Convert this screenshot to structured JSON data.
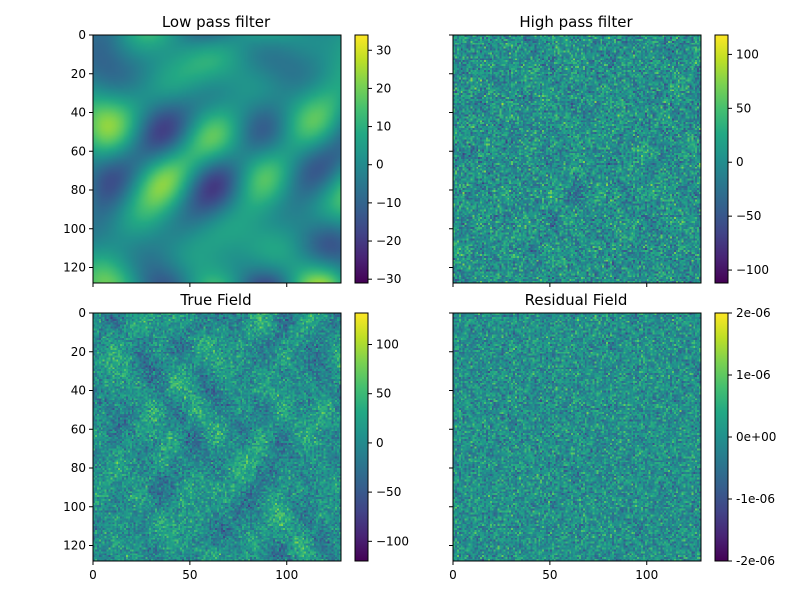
{
  "chart_data": [
    {
      "type": "heatmap",
      "title": "Low pass filter",
      "colormap": "viridis",
      "xlim": [
        0,
        128
      ],
      "ylim": [
        0,
        128
      ],
      "xticks": [
        0,
        50,
        100
      ],
      "xtick_labels_visible": false,
      "yticks": [
        0,
        20,
        40,
        60,
        80,
        100,
        120
      ],
      "ytick_labels_visible": true,
      "colorbar": {
        "vmin": -31,
        "vmax": 34,
        "ticks": [
          30,
          20,
          10,
          0,
          -10,
          -20,
          -30
        ],
        "labels": [
          "30",
          "20",
          "10",
          "0",
          "−10",
          "−20",
          "−30"
        ]
      },
      "texture": "smooth"
    },
    {
      "type": "heatmap",
      "title": "High pass filter",
      "colormap": "viridis",
      "xlim": [
        0,
        128
      ],
      "ylim": [
        0,
        128
      ],
      "xticks": [
        0,
        50,
        100
      ],
      "xtick_labels_visible": false,
      "yticks": [
        0,
        20,
        40,
        60,
        80,
        100,
        120
      ],
      "ytick_labels_visible": false,
      "colorbar": {
        "vmin": -112,
        "vmax": 118,
        "ticks": [
          100,
          50,
          0,
          -50,
          -100
        ],
        "labels": [
          "100",
          "50",
          "0",
          "−50",
          "−100"
        ]
      },
      "texture": "noisy"
    },
    {
      "type": "heatmap",
      "title": "True Field",
      "colormap": "viridis",
      "xlim": [
        0,
        128
      ],
      "ylim": [
        0,
        128
      ],
      "xticks": [
        0,
        50,
        100
      ],
      "xtick_labels_visible": true,
      "yticks": [
        0,
        20,
        40,
        60,
        80,
        100,
        120
      ],
      "ytick_labels_visible": true,
      "colorbar": {
        "vmin": -120,
        "vmax": 132,
        "ticks": [
          100,
          50,
          0,
          -50,
          -100
        ],
        "labels": [
          "100",
          "50",
          "0",
          "−50",
          "−100"
        ]
      },
      "texture": "mixed"
    },
    {
      "type": "heatmap",
      "title": "Residual Field",
      "colormap": "viridis",
      "xlim": [
        0,
        128
      ],
      "ylim": [
        0,
        128
      ],
      "xticks": [
        0,
        50,
        100
      ],
      "xtick_labels_visible": true,
      "yticks": [
        0,
        20,
        40,
        60,
        80,
        100,
        120
      ],
      "ytick_labels_visible": false,
      "colorbar": {
        "vmin": -2e-06,
        "vmax": 2e-06,
        "ticks": [
          2e-06,
          1e-06,
          0,
          -1e-06,
          -2e-06
        ],
        "labels": [
          "2e-06",
          "1e-06",
          "0e+00",
          "-1e-06",
          "-2e-06"
        ]
      },
      "texture": "white-noise"
    }
  ]
}
